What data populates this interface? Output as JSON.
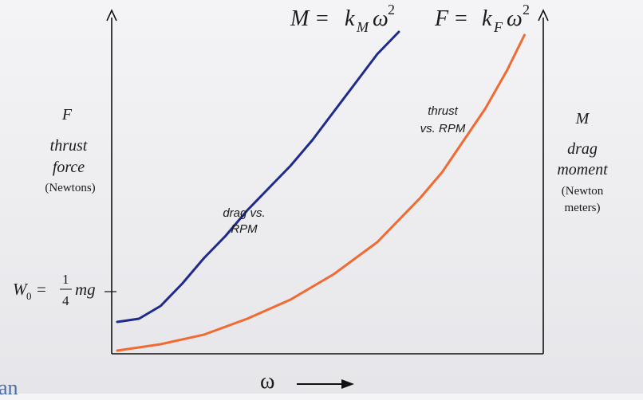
{
  "chart_data": {
    "type": "line",
    "xlabel": "ω",
    "y_left_label": [
      "F",
      "thrust",
      "force",
      "(Newtons)"
    ],
    "y_right_label": [
      "M",
      "drag",
      "moment",
      "(Newton",
      "meters)"
    ],
    "y_tick_label": {
      "lhs": "W",
      "sub": "0",
      "num": "1",
      "den": "4",
      "rhs": "mg"
    },
    "formulas": {
      "moment": {
        "lhs": "M",
        "k": "k",
        "sub": "M",
        "var": "ω",
        "exp": "2"
      },
      "force": {
        "lhs": "F",
        "k": "k",
        "sub": "F",
        "var": "ω",
        "exp": "2"
      }
    },
    "series": [
      {
        "label": [
          "drag vs.",
          "RPM"
        ],
        "color": "#1f2b8c",
        "x": [
          0,
          0.05,
          0.1,
          0.15,
          0.2,
          0.25,
          0.3,
          0.35,
          0.4,
          0.45,
          0.5,
          0.55,
          0.6,
          0.65
        ],
        "y": [
          0.09,
          0.1,
          0.14,
          0.21,
          0.29,
          0.36,
          0.44,
          0.51,
          0.58,
          0.66,
          0.75,
          0.84,
          0.93,
          1.0
        ]
      },
      {
        "label": [
          "thrust",
          "vs. RPM"
        ],
        "color": "#f06a32",
        "x": [
          0,
          0.1,
          0.2,
          0.3,
          0.4,
          0.5,
          0.6,
          0.7,
          0.75,
          0.8,
          0.85,
          0.9,
          0.94
        ],
        "y": [
          0.0,
          0.02,
          0.05,
          0.1,
          0.16,
          0.24,
          0.34,
          0.48,
          0.56,
          0.66,
          0.76,
          0.88,
          0.99
        ]
      }
    ],
    "xlim": [
      0,
      1
    ],
    "ylim": [
      0,
      1.1
    ],
    "grid": false,
    "legend": "none"
  },
  "edge_text": "an"
}
